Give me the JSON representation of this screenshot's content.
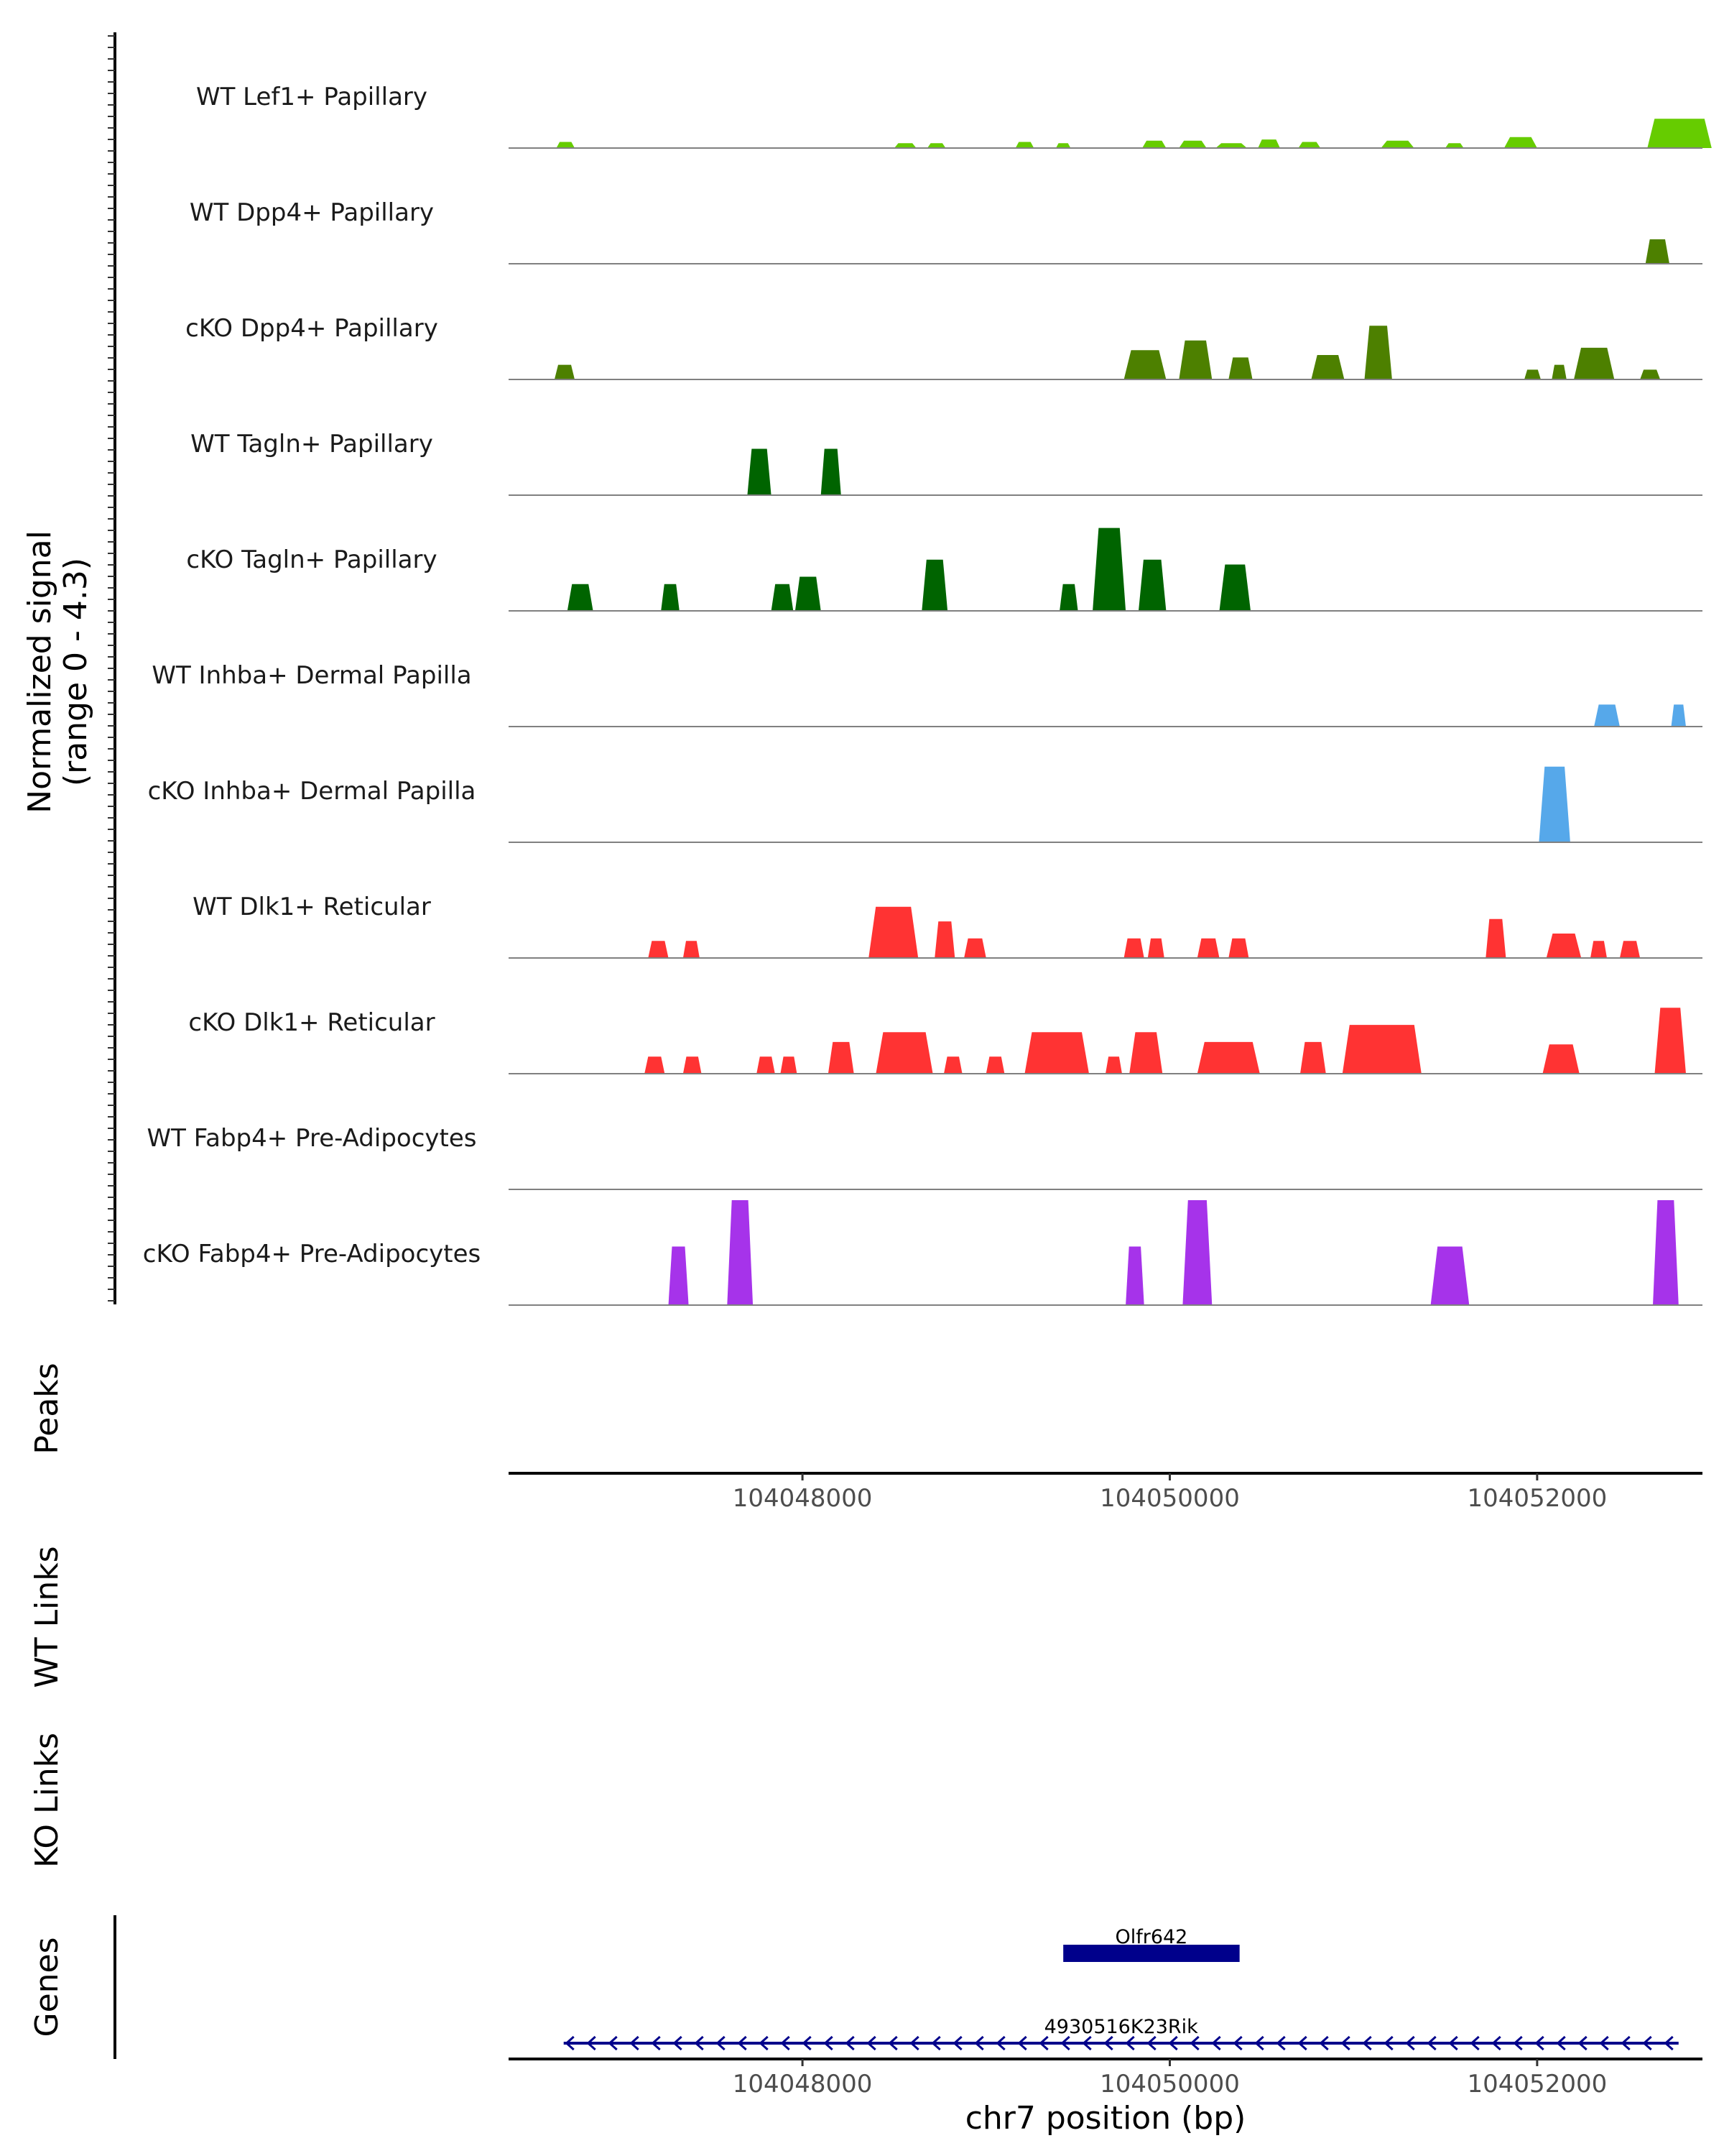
{
  "chart_data": {
    "type": "area",
    "title": "",
    "ylabel": "Normalized signal\n(range 0 - 4.3)",
    "ylim": [
      0,
      4.3
    ],
    "xlabel": "chr7 position (bp)",
    "xlim": [
      104046400,
      104052900
    ],
    "xticks": [
      {
        "value": 104048000,
        "label": "104048000"
      },
      {
        "value": 104050000,
        "label": "104050000"
      },
      {
        "value": 104052000,
        "label": "104052000"
      }
    ],
    "panel_titles": {
      "peaks": "Peaks",
      "wt_links": "WT Links",
      "ko_links": "KO Links",
      "genes": "Genes"
    },
    "tracks": [
      {
        "name": "WT Lef1+ Papillary",
        "color": "#66cc00",
        "peaks": [
          [
            104046660,
            104046760,
            0.25
          ],
          [
            104048500,
            104048620,
            0.2
          ],
          [
            104048680,
            104048780,
            0.2
          ],
          [
            104049160,
            104049260,
            0.25
          ],
          [
            104049380,
            104049460,
            0.2
          ],
          [
            104049850,
            104049980,
            0.3
          ],
          [
            104050050,
            104050200,
            0.3
          ],
          [
            104050250,
            104050420,
            0.2
          ],
          [
            104050480,
            104050600,
            0.35
          ],
          [
            104050700,
            104050820,
            0.25
          ],
          [
            104051150,
            104051330,
            0.3
          ],
          [
            104051500,
            104051600,
            0.2
          ],
          [
            104051820,
            104052000,
            0.45
          ],
          [
            104052600,
            104052950,
            1.2
          ]
        ]
      },
      {
        "name": "WT Dpp4+ Papillary",
        "color": "#4d8000",
        "peaks": [
          [
            104052590,
            104052720,
            1.0
          ]
        ]
      },
      {
        "name": "cKO Dpp4+ Papillary",
        "color": "#4d8000",
        "peaks": [
          [
            104046650,
            104046760,
            0.6
          ],
          [
            104049750,
            104049980,
            1.2
          ],
          [
            104050050,
            104050230,
            1.6
          ],
          [
            104050320,
            104050450,
            0.9
          ],
          [
            104050770,
            104050950,
            1.0
          ],
          [
            104051060,
            104051210,
            2.2
          ],
          [
            104051930,
            104052020,
            0.4
          ],
          [
            104052080,
            104052160,
            0.6
          ],
          [
            104052200,
            104052420,
            1.3
          ],
          [
            104052560,
            104052670,
            0.4
          ]
        ]
      },
      {
        "name": "WT Tagln+ Papillary",
        "color": "#006400",
        "peaks": [
          [
            104047700,
            104047830,
            1.9
          ],
          [
            104048100,
            104048210,
            1.9
          ]
        ]
      },
      {
        "name": "cKO Tagln+ Papillary",
        "color": "#006400",
        "peaks": [
          [
            104046720,
            104046860,
            1.1
          ],
          [
            104047230,
            104047330,
            1.1
          ],
          [
            104047830,
            104047950,
            1.1
          ],
          [
            104047960,
            104048100,
            1.4
          ],
          [
            104048650,
            104048790,
            2.1
          ],
          [
            104049400,
            104049500,
            1.1
          ],
          [
            104049580,
            104049760,
            3.4
          ],
          [
            104049830,
            104049980,
            2.1
          ],
          [
            104050270,
            104050440,
            1.9
          ]
        ]
      },
      {
        "name": "WT Inhba+ Dermal Papilla",
        "color": "#56a8ea",
        "peaks": [
          [
            104052310,
            104052450,
            0.9
          ],
          [
            104052730,
            104052810,
            0.9
          ]
        ]
      },
      {
        "name": "cKO Inhba+ Dermal Papilla",
        "color": "#56a8ea",
        "peaks": [
          [
            104052010,
            104052180,
            3.1
          ]
        ]
      },
      {
        "name": "WT Dlk1+ Reticular",
        "color": "#ff3333",
        "peaks": [
          [
            104047160,
            104047270,
            0.7
          ],
          [
            104047350,
            104047440,
            0.7
          ],
          [
            104048360,
            104048630,
            2.1
          ],
          [
            104048720,
            104048830,
            1.5
          ],
          [
            104048880,
            104049000,
            0.8
          ],
          [
            104049750,
            104049860,
            0.8
          ],
          [
            104049880,
            104049970,
            0.8
          ],
          [
            104050150,
            104050270,
            0.8
          ],
          [
            104050320,
            104050430,
            0.8
          ],
          [
            104051720,
            104051830,
            1.6
          ],
          [
            104052050,
            104052240,
            1.0
          ],
          [
            104052290,
            104052380,
            0.7
          ],
          [
            104052450,
            104052560,
            0.7
          ]
        ]
      },
      {
        "name": "cKO Dlk1+ Reticular",
        "color": "#ff3333",
        "peaks": [
          [
            104047140,
            104047250,
            0.7
          ],
          [
            104047350,
            104047450,
            0.7
          ],
          [
            104047750,
            104047850,
            0.7
          ],
          [
            104047880,
            104047970,
            0.7
          ],
          [
            104048140,
            104048280,
            1.3
          ],
          [
            104048400,
            104048710,
            1.7
          ],
          [
            104048770,
            104048870,
            0.7
          ],
          [
            104049000,
            104049100,
            0.7
          ],
          [
            104049210,
            104049560,
            1.7
          ],
          [
            104049650,
            104049740,
            0.7
          ],
          [
            104049780,
            104049960,
            1.7
          ],
          [
            104050150,
            104050490,
            1.3
          ],
          [
            104050710,
            104050850,
            1.3
          ],
          [
            104050940,
            104051370,
            2.0
          ],
          [
            104052030,
            104052230,
            1.2
          ],
          [
            104052640,
            104052810,
            2.7
          ]
        ]
      },
      {
        "name": "WT Fabp4+ Pre-Adipocytes",
        "color": "#a633ea",
        "peaks": []
      },
      {
        "name": "cKO Fabp4+ Pre-Adipocytes",
        "color": "#a633ea",
        "peaks": [
          [
            104047270,
            104047380,
            2.4
          ],
          [
            104047590,
            104047730,
            4.3
          ],
          [
            104049760,
            104049860,
            2.4
          ],
          [
            104050070,
            104050230,
            4.3
          ],
          [
            104051420,
            104051630,
            2.4
          ],
          [
            104052630,
            104052770,
            4.3
          ]
        ]
      }
    ],
    "genes": [
      {
        "name": "Olfr642",
        "start": 104049420,
        "end": 104050380,
        "strand": "+",
        "color": "#00008b"
      },
      {
        "name": "4930516K23Rik",
        "start": 104046700,
        "end": 104052770,
        "strand": "-",
        "color": "#00008b"
      }
    ]
  }
}
